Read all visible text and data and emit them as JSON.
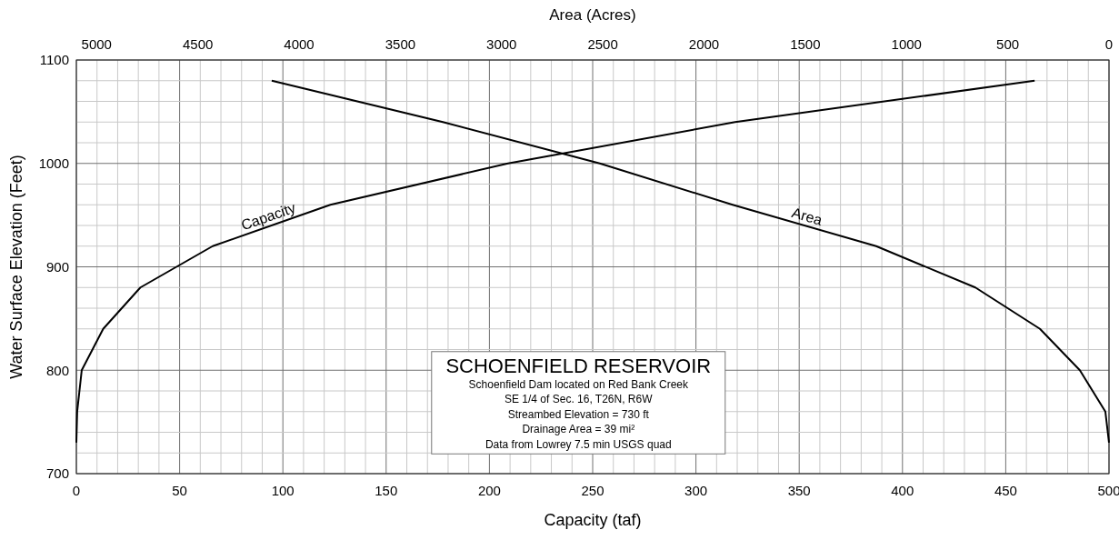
{
  "chart_data": {
    "type": "line",
    "title": "SCHOENFIELD RESERVOIR",
    "annotations": [
      "Schoenfield Dam located on Red Bank Creek",
      "SE 1/4 of Sec. 16, T26N, R6W",
      "Streambed Elevation = 730 ft",
      "Drainage Area = 39 mi²",
      "Data from Lowrey 7.5 min USGS quad"
    ],
    "xlabel": "Capacity (taf)",
    "ylabel": "Water Surface Elevation (Feet)",
    "x2label": "Area (Acres)",
    "xlim": [
      0,
      500
    ],
    "xticks": [
      0,
      {
        "value": 10,
        "label": null
      },
      {
        "value": 20,
        "label": null
      },
      {
        "value": 30,
        "label": null
      },
      {
        "value": 40,
        "label": null
      },
      50,
      {
        "value": 60,
        "label": null
      },
      {
        "value": 70,
        "label": null
      },
      {
        "value": 80,
        "label": null
      },
      {
        "value": 90,
        "label": null
      },
      100,
      {
        "value": 110,
        "label": null
      },
      {
        "value": 120,
        "label": null
      },
      {
        "value": 130,
        "label": null
      },
      {
        "value": 140,
        "label": null
      },
      150,
      {
        "value": 160,
        "label": null
      },
      {
        "value": 170,
        "label": null
      },
      {
        "value": 180,
        "label": null
      },
      {
        "value": 190,
        "label": null
      },
      200,
      {
        "value": 210,
        "label": null
      },
      {
        "value": 220,
        "label": null
      },
      {
        "value": 230,
        "label": null
      },
      {
        "value": 240,
        "label": null
      },
      250,
      {
        "value": 260,
        "label": null
      },
      {
        "value": 270,
        "label": null
      },
      {
        "value": 280,
        "label": null
      },
      {
        "value": 290,
        "label": null
      },
      300,
      {
        "value": 310,
        "label": null
      },
      {
        "value": 320,
        "label": null
      },
      {
        "value": 330,
        "label": null
      },
      {
        "value": 340,
        "label": null
      },
      350,
      {
        "value": 360,
        "label": null
      },
      {
        "value": 370,
        "label": null
      },
      {
        "value": 380,
        "label": null
      },
      {
        "value": 390,
        "label": null
      },
      400,
      {
        "value": 410,
        "label": null
      },
      {
        "value": 420,
        "label": null
      },
      {
        "value": 430,
        "label": null
      },
      {
        "value": 440,
        "label": null
      },
      450,
      {
        "value": 460,
        "label": null
      },
      {
        "value": 470,
        "label": null
      },
      {
        "value": 480,
        "label": null
      },
      {
        "value": 490,
        "label": null
      },
      500
    ],
    "x2lim": [
      5100,
      0
    ],
    "x2ticks": [
      5000,
      4500,
      4000,
      3500,
      3000,
      2500,
      2000,
      1500,
      1000,
      500,
      0
    ],
    "ylim": [
      700,
      1100
    ],
    "yticks": [
      700,
      {
        "value": 720,
        "label": null
      },
      {
        "value": 740,
        "label": null
      },
      {
        "value": 760,
        "label": null
      },
      {
        "value": 780,
        "label": null
      },
      800,
      {
        "value": 820,
        "label": null
      },
      {
        "value": 840,
        "label": null
      },
      {
        "value": 860,
        "label": null
      },
      {
        "value": 880,
        "label": null
      },
      900,
      {
        "value": 920,
        "label": null
      },
      {
        "value": 940,
        "label": null
      },
      {
        "value": 960,
        "label": null
      },
      {
        "value": 980,
        "label": null
      },
      1000,
      {
        "value": 1020,
        "label": null
      },
      {
        "value": 1040,
        "label": null
      },
      {
        "value": 1060,
        "label": null
      },
      {
        "value": 1080,
        "label": null
      },
      1100
    ],
    "grid": true,
    "series": [
      {
        "name": "Capacity",
        "color": "#000000",
        "x": [
          0,
          0.4,
          2.6,
          13,
          31,
          66,
          123,
          209,
          319,
          464
        ],
        "values": [
          730,
          760,
          800,
          840,
          880,
          920,
          960,
          1000,
          1040,
          1080
        ]
      },
      {
        "name": "Area",
        "color": "#000000",
        "axis": "x2",
        "x": [
          0,
          18,
          144,
          341,
          660,
          1150,
          1859,
          2515,
          3290,
          4135
        ],
        "values": [
          730,
          760,
          800,
          840,
          880,
          920,
          960,
          1000,
          1040,
          1080
        ]
      }
    ]
  }
}
